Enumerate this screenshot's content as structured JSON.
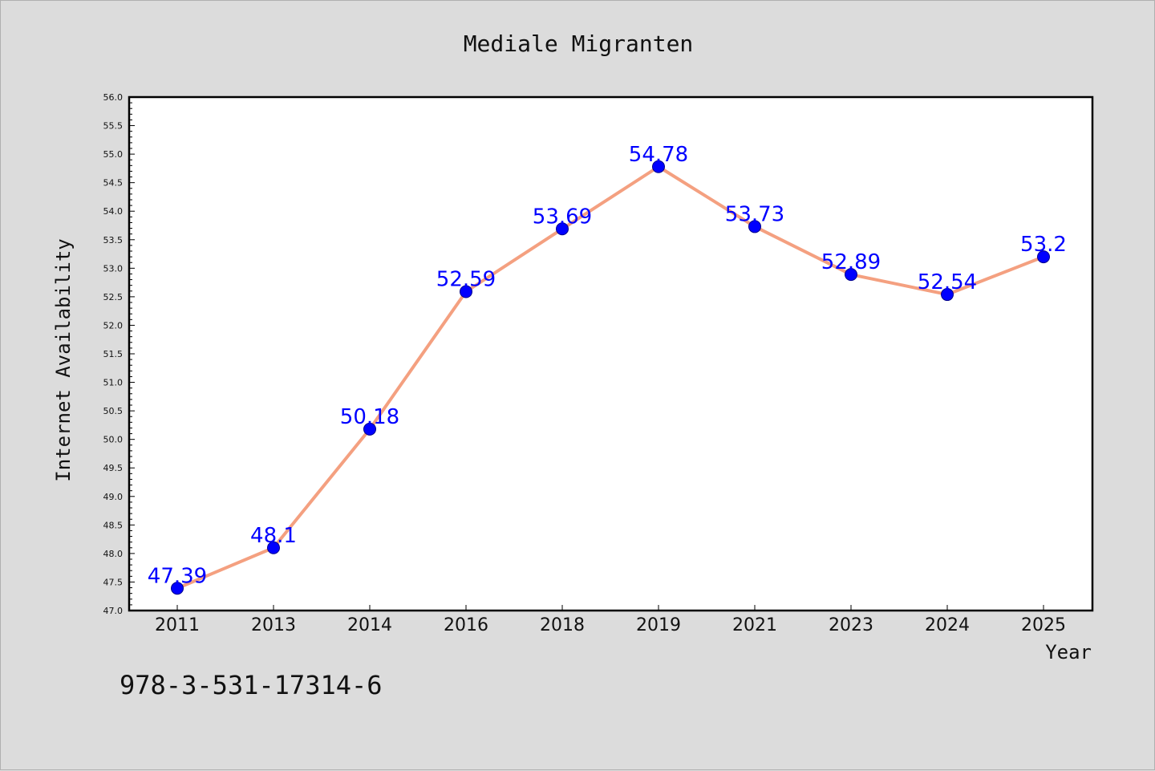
{
  "chart_data": {
    "type": "line",
    "title": "Mediale Migranten",
    "xlabel": "Year",
    "ylabel": "Internet Availability",
    "categories": [
      "2011",
      "2013",
      "2014",
      "2016",
      "2018",
      "2019",
      "2021",
      "2023",
      "2024",
      "2025"
    ],
    "series": [
      {
        "values": [
          47.39,
          48.1,
          50.18,
          52.59,
          53.69,
          54.78,
          53.73,
          52.89,
          52.54,
          53.2
        ],
        "data_labels": [
          "47.39",
          "48.1",
          "50.18",
          "52.59",
          "53.69",
          "54.78",
          "53.73",
          "52.89",
          "52.54",
          "53.2"
        ],
        "line_color": "#f4a080",
        "marker_color": "#0000ff"
      }
    ],
    "ylim": [
      47.0,
      56.0
    ],
    "yticks": [
      "47.0",
      "47.5",
      "48.0",
      "48.5",
      "49.0",
      "49.5",
      "50.0",
      "50.5",
      "51.0",
      "51.5",
      "52.0",
      "52.5",
      "53.0",
      "53.5",
      "54.0",
      "54.5",
      "55.0",
      "55.5",
      "56.0"
    ],
    "grid": false,
    "legend": "none"
  },
  "footer": {
    "isbn": "978-3-531-17314-6"
  }
}
